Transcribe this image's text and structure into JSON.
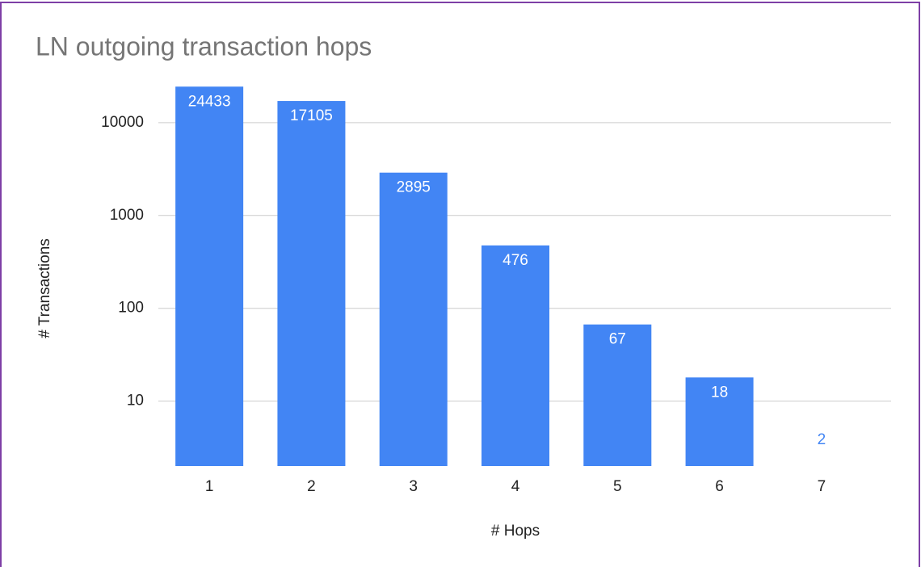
{
  "chart_data": {
    "type": "bar",
    "title": "LN outgoing transaction hops",
    "x_label": "# Hops",
    "y_label": "# Transactions",
    "categories": [
      "1",
      "2",
      "3",
      "4",
      "5",
      "6",
      "7"
    ],
    "values": [
      24433,
      17105,
      2895,
      476,
      67,
      18,
      2
    ],
    "color": "#4285f4",
    "log_scale": true,
    "ylim": [
      2,
      30000
    ],
    "yticks": [
      10,
      100,
      1000,
      10000
    ],
    "grid": true
  }
}
